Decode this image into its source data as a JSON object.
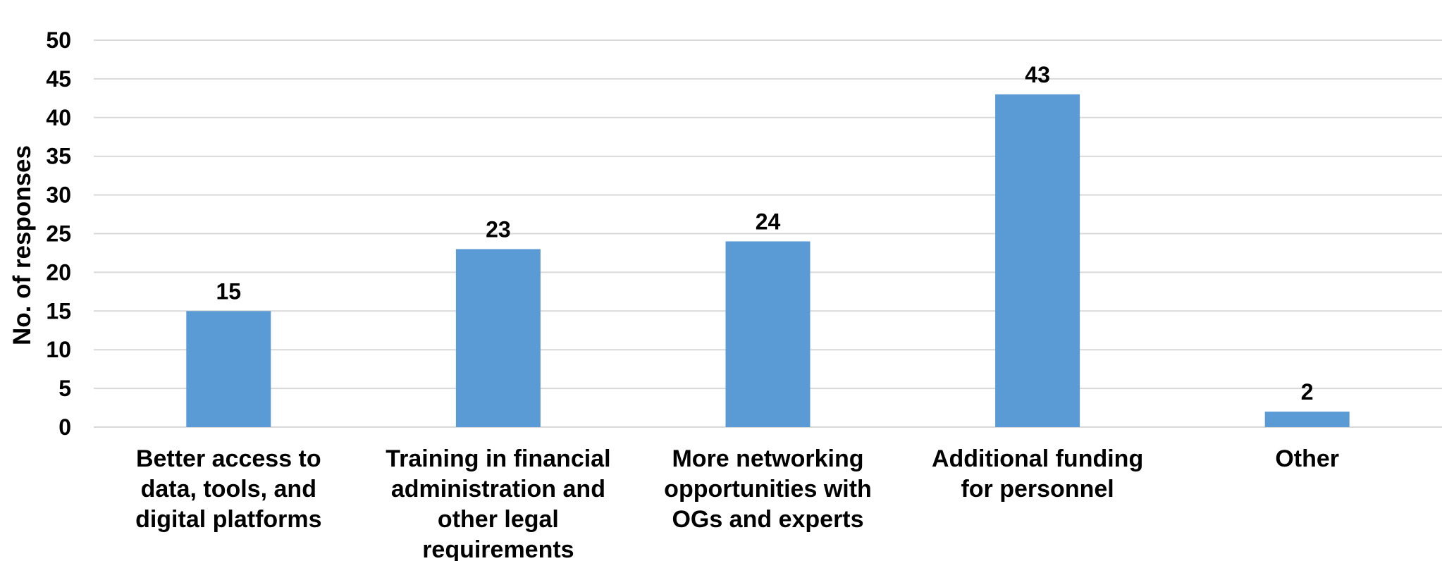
{
  "chart_data": {
    "type": "bar",
    "title": "",
    "xlabel": "",
    "ylabel": "No. of responses",
    "ylim": [
      0,
      50
    ],
    "yticks": [
      0,
      5,
      10,
      15,
      20,
      25,
      30,
      35,
      40,
      45,
      50
    ],
    "grid": true,
    "legend": "none",
    "bar_color": "#5b9bd5",
    "categories": [
      [
        "Better access to",
        "data, tools, and",
        "digital platforms"
      ],
      [
        "Training in financial",
        "administration and",
        "other legal",
        "requirements"
      ],
      [
        "More networking",
        "opportunities with",
        "OGs and experts"
      ],
      [
        "Additional funding",
        "for personnel"
      ],
      [
        "Other"
      ]
    ],
    "values": [
      15,
      23,
      24,
      43,
      2
    ],
    "data_labels": [
      "15",
      "23",
      "24",
      "43",
      "2"
    ]
  }
}
